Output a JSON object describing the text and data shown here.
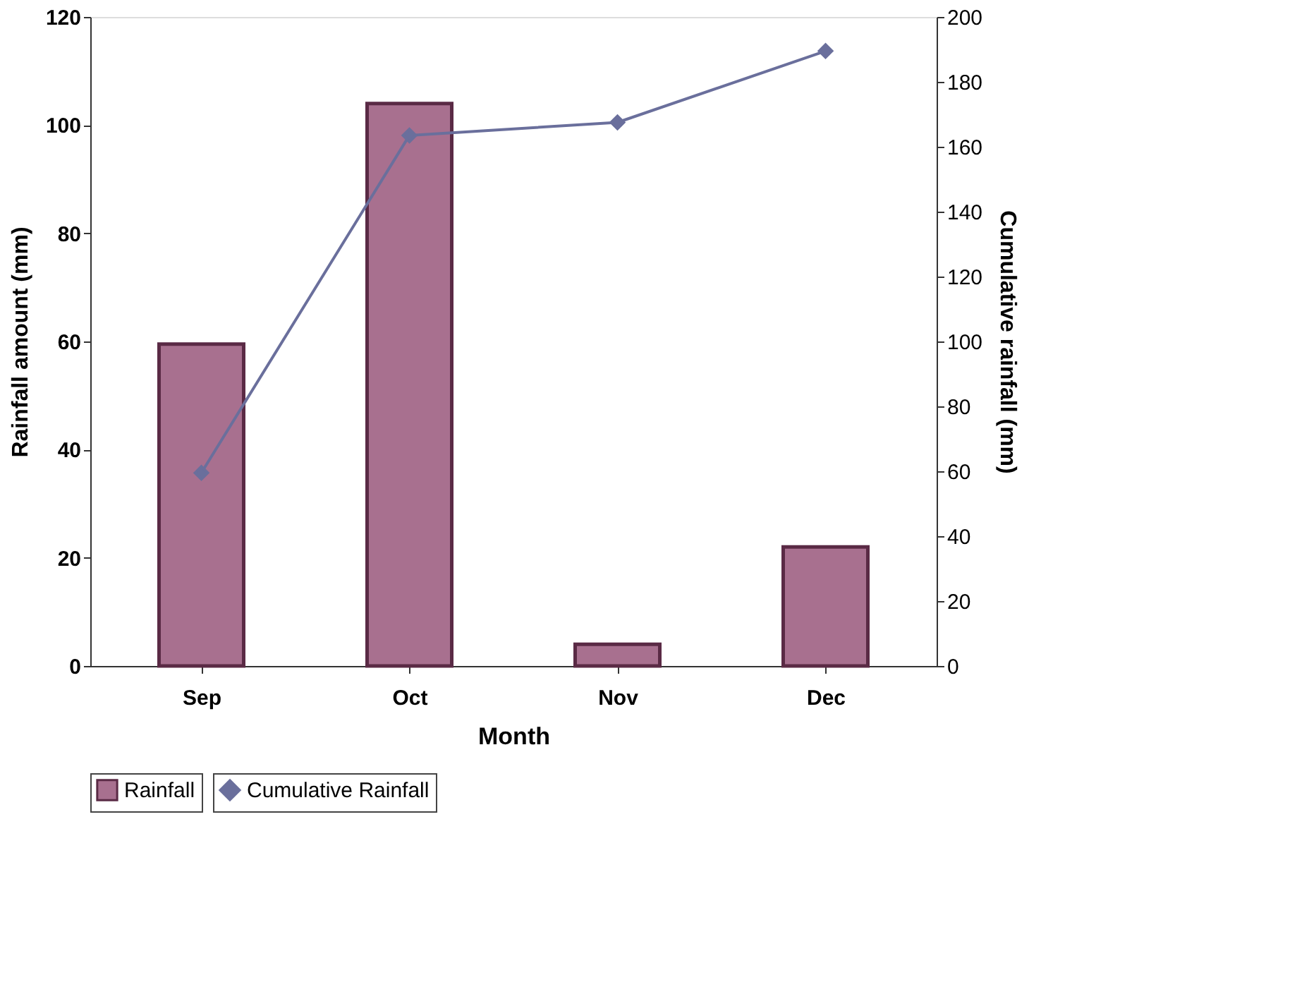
{
  "chart_data": {
    "type": "bar",
    "xlabel": "Month",
    "ylabel": "Rainfall amount (mm)",
    "y2label": "Cumulative rainfall (mm)",
    "categories": [
      "Sep",
      "Oct",
      "Nov",
      "Dec"
    ],
    "series": [
      {
        "name": "Rainfall",
        "color": "#a8708f",
        "values": [
          59.5,
          104,
          4,
          22
        ]
      },
      {
        "name": "Cumulative Rainfall",
        "type": "line",
        "axis": "y2",
        "color": "#6a6f9c",
        "marker": "diamond",
        "values": [
          59.5,
          163.5,
          167.5,
          189.5
        ]
      }
    ],
    "ylim": [
      0,
      120
    ],
    "yticks": [
      0,
      20,
      40,
      60,
      80,
      100,
      120
    ],
    "y2lim": [
      0,
      200
    ],
    "y2ticks": [
      0,
      20,
      40,
      60,
      80,
      100,
      120,
      140,
      160,
      180,
      200
    ],
    "grid": false,
    "legend": "bottom"
  }
}
